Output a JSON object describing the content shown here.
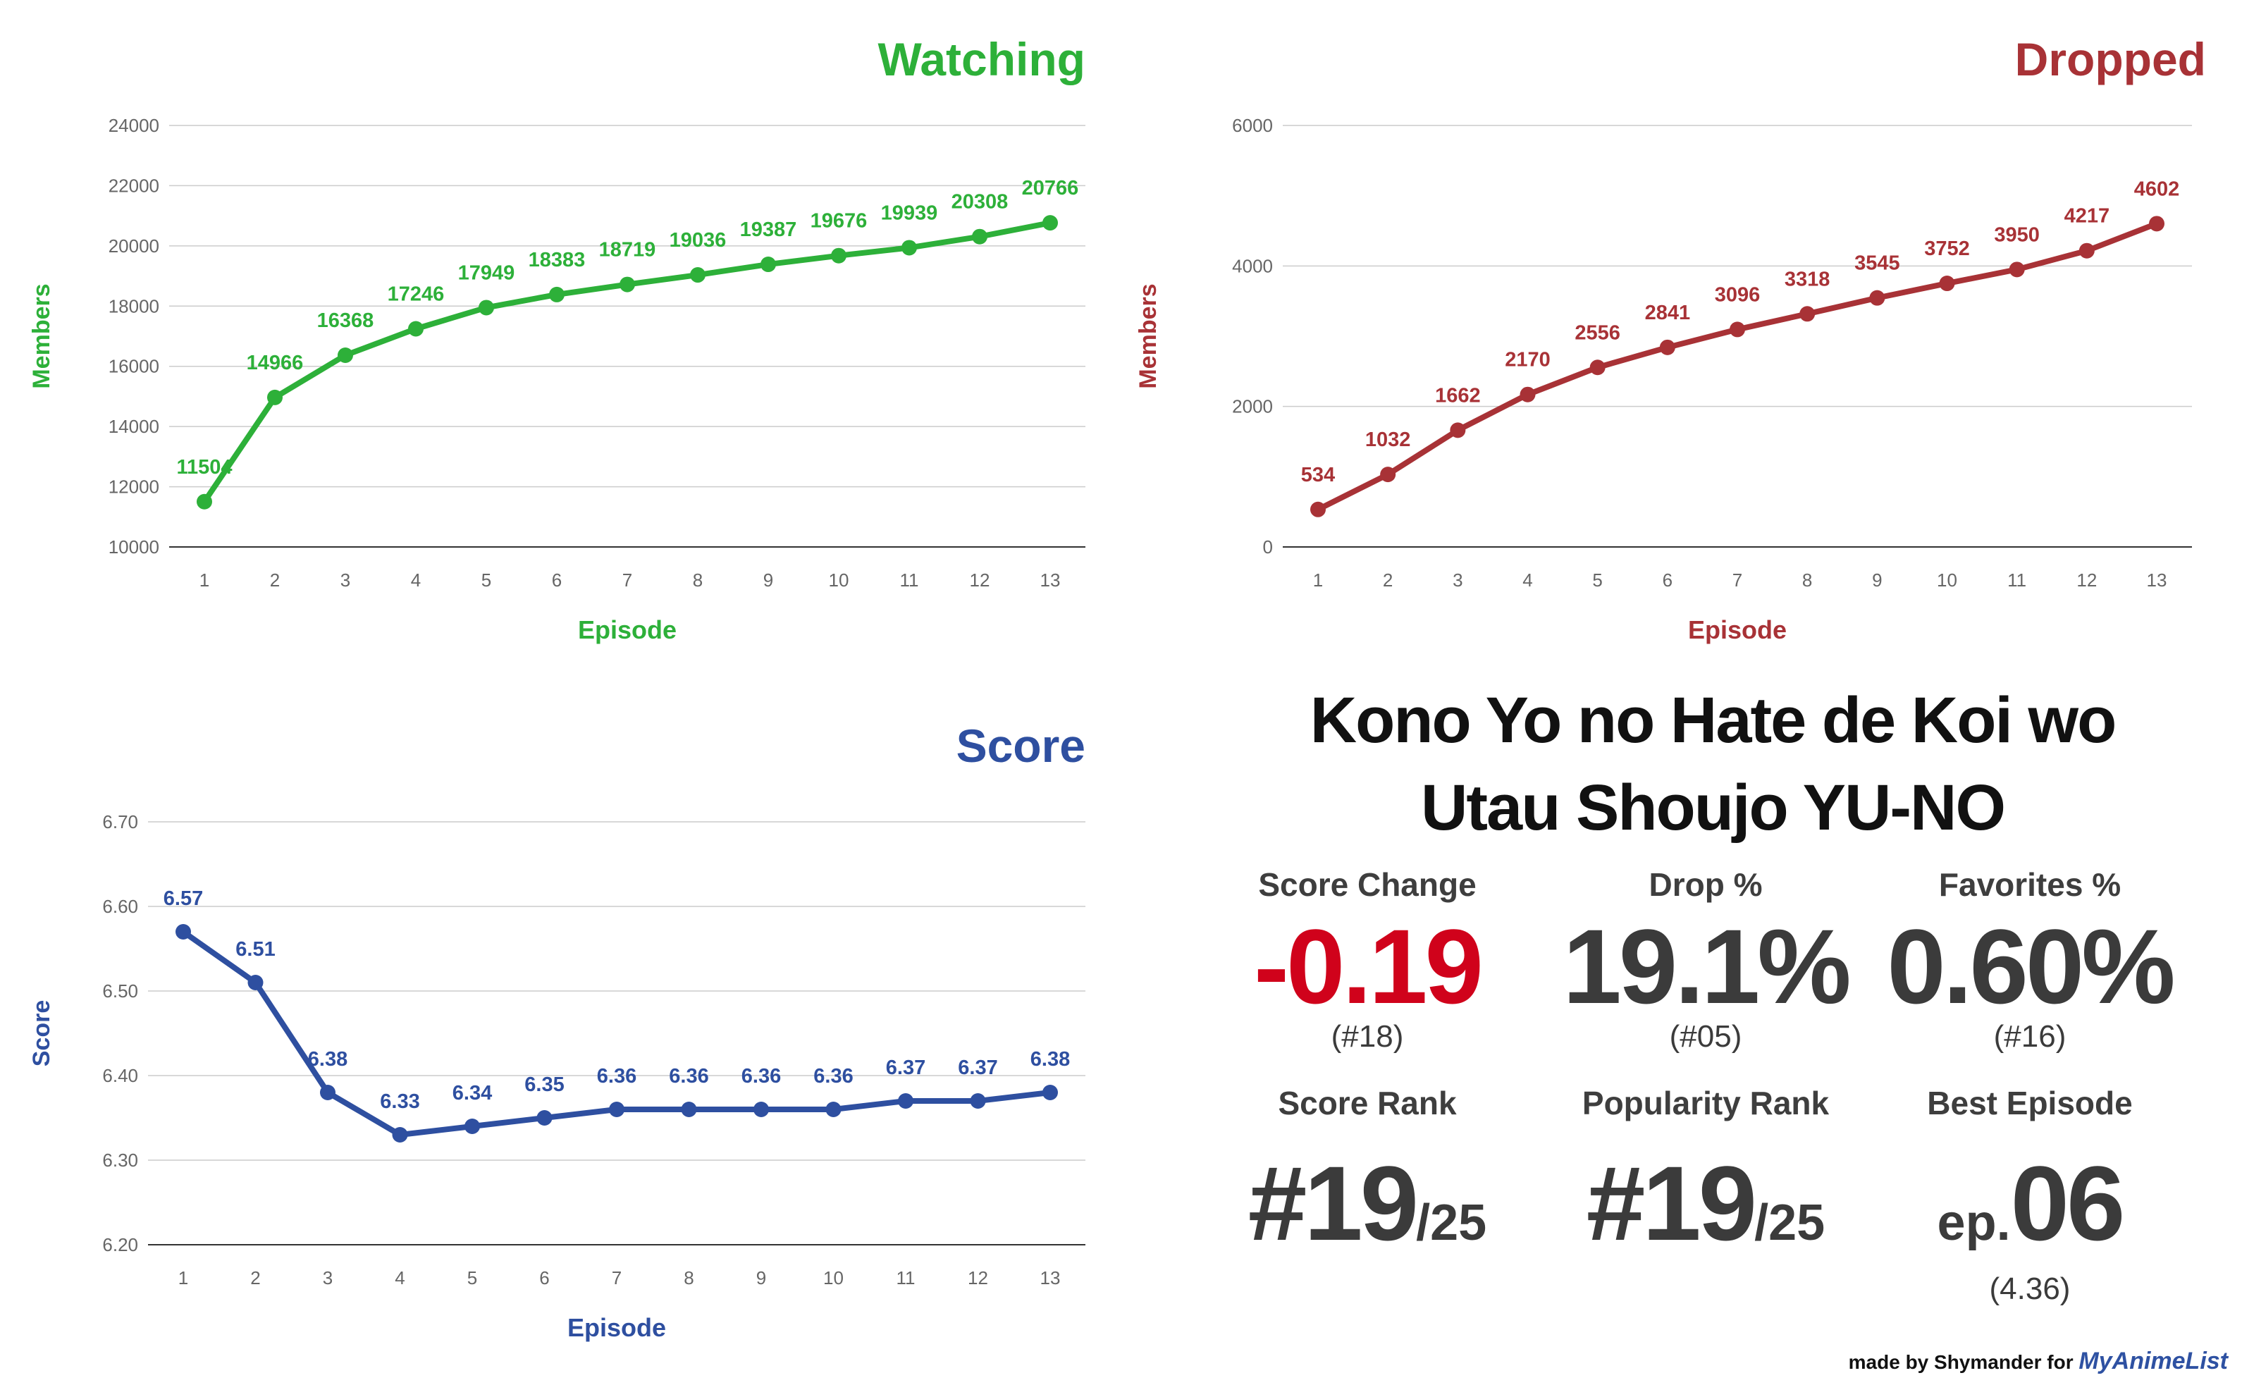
{
  "chart_data": [
    {
      "type": "line",
      "title": "Watching",
      "xlabel": "Episode",
      "ylabel": "Members",
      "color": "#2db039",
      "x": [
        1,
        2,
        3,
        4,
        5,
        6,
        7,
        8,
        9,
        10,
        11,
        12,
        13
      ],
      "values": [
        11504,
        14966,
        16368,
        17246,
        17949,
        18383,
        18719,
        19036,
        19387,
        19676,
        19939,
        20308,
        20766
      ],
      "ylim": [
        10000,
        24000
      ],
      "yticks": [
        10000,
        12000,
        14000,
        16000,
        18000,
        20000,
        22000,
        24000
      ],
      "grid": true
    },
    {
      "type": "line",
      "title": "Dropped",
      "xlabel": "Episode",
      "ylabel": "Members",
      "color": "#a83236",
      "x": [
        1,
        2,
        3,
        4,
        5,
        6,
        7,
        8,
        9,
        10,
        11,
        12,
        13
      ],
      "values": [
        534,
        1032,
        1662,
        2170,
        2556,
        2841,
        3096,
        3318,
        3545,
        3752,
        3950,
        4217,
        4602
      ],
      "ylim": [
        0,
        6000
      ],
      "yticks": [
        0,
        2000,
        4000,
        6000
      ],
      "grid": true
    },
    {
      "type": "line",
      "title": "Score",
      "xlabel": "Episode",
      "ylabel": "Score",
      "color": "#2e4fa0",
      "x": [
        1,
        2,
        3,
        4,
        5,
        6,
        7,
        8,
        9,
        10,
        11,
        12,
        13
      ],
      "values": [
        6.57,
        6.51,
        6.38,
        6.33,
        6.34,
        6.35,
        6.36,
        6.36,
        6.36,
        6.36,
        6.37,
        6.37,
        6.38
      ],
      "ylim": [
        6.2,
        6.7
      ],
      "yticks": [
        "6.20",
        "6.30",
        "6.40",
        "6.50",
        "6.60",
        "6.70"
      ],
      "grid": true
    }
  ],
  "anime": {
    "title_line1": "Kono Yo no Hate de Koi wo",
    "title_line2": "Utau Shoujo YU-NO"
  },
  "stats": {
    "score_change": {
      "label": "Score Change",
      "value": "-0.19",
      "rank": "(#18)",
      "color": "#d0021b"
    },
    "drop_pct": {
      "label": "Drop %",
      "value": "19.1%",
      "rank": "(#05)"
    },
    "favorites_pct": {
      "label": "Favorites %",
      "value": "0.60%",
      "rank": "(#16)"
    },
    "score_rank": {
      "label": "Score Rank",
      "value": "#19",
      "suffix": "/25"
    },
    "popularity_rank": {
      "label": "Popularity Rank",
      "value": "#19",
      "suffix": "/25"
    },
    "best_episode": {
      "label": "Best Episode",
      "prefix": "ep.",
      "value": "06",
      "score": "(4.36)"
    }
  },
  "footer": {
    "text": "made by Shymander for",
    "brand": "MyAnimeList"
  }
}
